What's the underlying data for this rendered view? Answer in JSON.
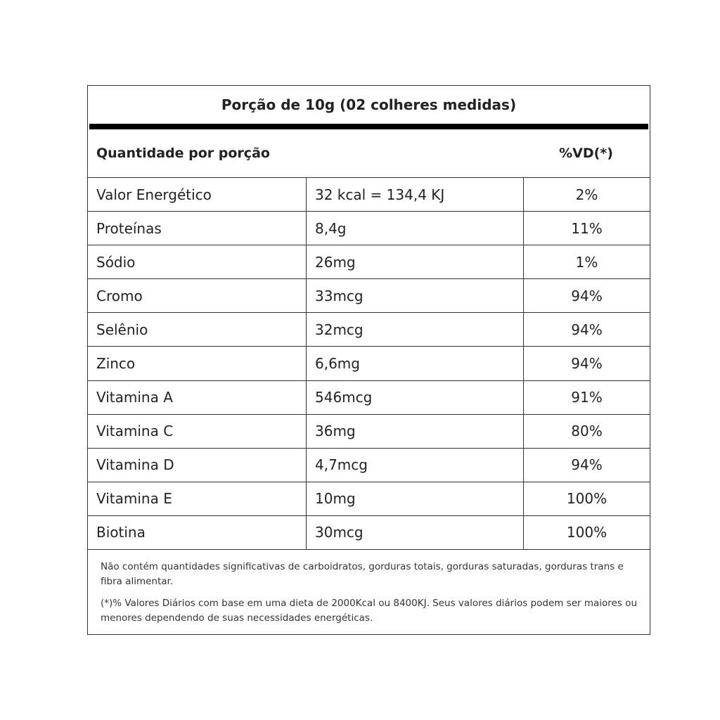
{
  "title": "Porção de 10g (02 colheres medidas)",
  "header": {
    "quantity": "Quantidade por porção",
    "dv": "%VD(*)"
  },
  "rows": [
    {
      "name": "Valor Energético",
      "amount": "32 kcal = 134,4 KJ",
      "dv": "2%"
    },
    {
      "name": "Proteínas",
      "amount": "8,4g",
      "dv": "11%"
    },
    {
      "name": "Sódio",
      "amount": "26mg",
      "dv": "1%"
    },
    {
      "name": "Cromo",
      "amount": "33mcg",
      "dv": "94%"
    },
    {
      "name": "Selênio",
      "amount": "32mcg",
      "dv": "94%"
    },
    {
      "name": "Zinco",
      "amount": "6,6mg",
      "dv": "94%"
    },
    {
      "name": "Vitamina A",
      "amount": "546mcg",
      "dv": "91%"
    },
    {
      "name": "Vitamina C",
      "amount": "36mg",
      "dv": "80%"
    },
    {
      "name": "Vitamina D",
      "amount": "4,7mcg",
      "dv": "94%"
    },
    {
      "name": "Vitamina E",
      "amount": "10mg",
      "dv": "100%"
    },
    {
      "name": "Biotina",
      "amount": "30mcg",
      "dv": "100%"
    }
  ],
  "footnotes": [
    "Não contém quantidades significativas de carboidratos, gorduras totais, gorduras saturadas, gorduras trans e fibra alimentar.",
    "(*)% Valores Diários com base em uma dieta de 2000Kcal ou 8400KJ. Seus valores diários podem ser maiores ou menores dependendo de suas necessidades energéticas."
  ]
}
